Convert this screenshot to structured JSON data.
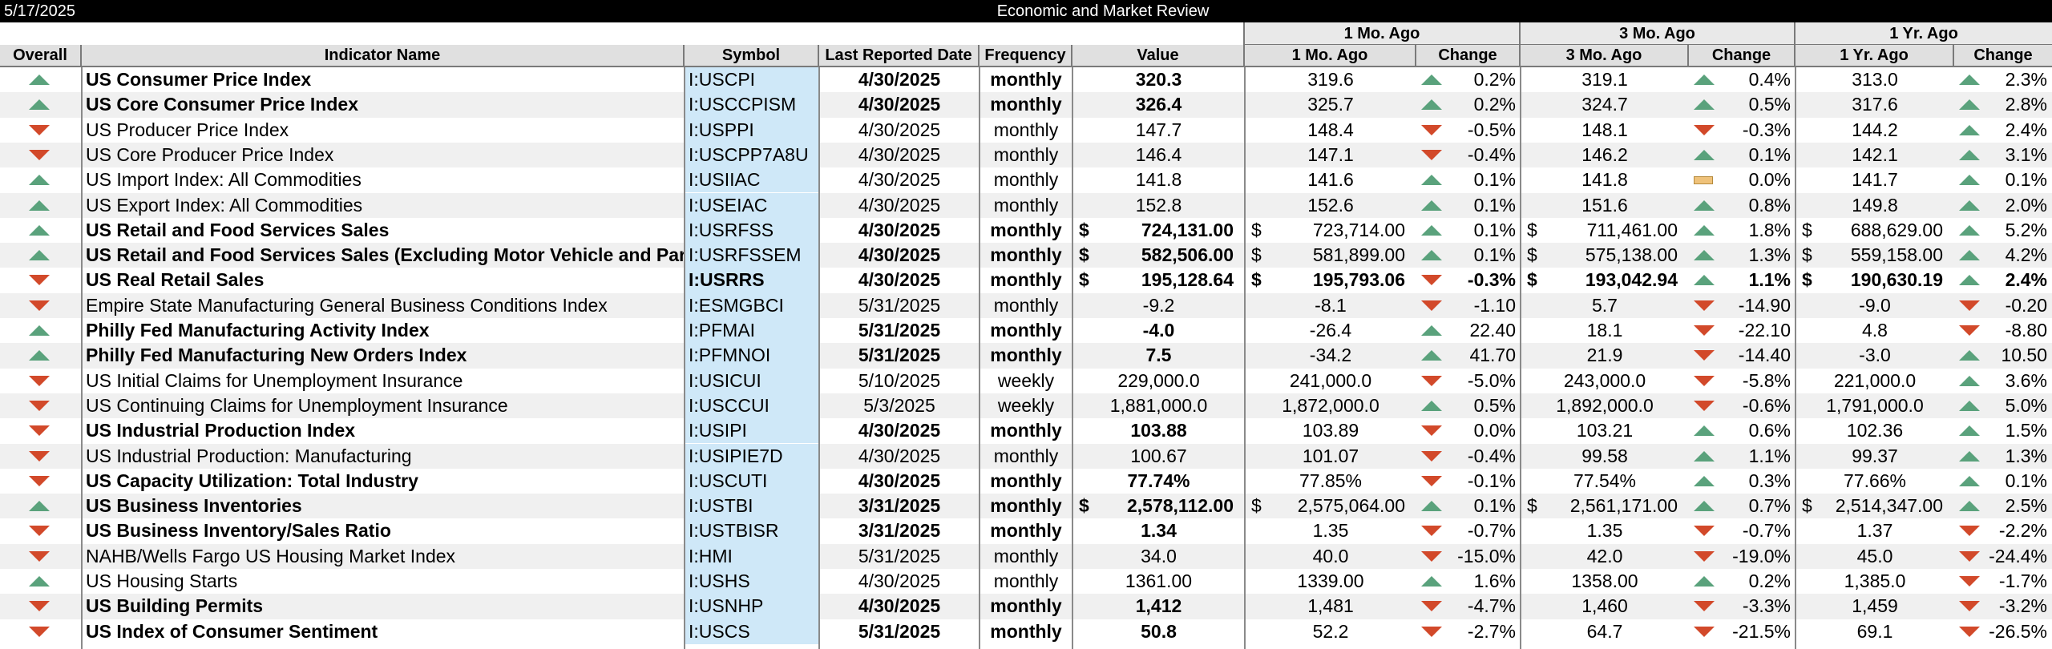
{
  "title_bar": {
    "date": "5/17/2025",
    "title": "Economic and Market Review"
  },
  "group_headers": {
    "one_month": "1 Mo. Ago",
    "three_month": "3 Mo. Ago",
    "one_year": "1 Yr. Ago"
  },
  "columns": {
    "overall": "Overall",
    "name": "Indicator Name",
    "symbol": "Symbol",
    "last_reported": "Last Reported Date",
    "frequency": "Frequency",
    "value": "Value",
    "m1": "1 Mo. Ago",
    "m1_change": "Change",
    "m3": "3 Mo. Ago",
    "m3_change": "Change",
    "y1": "1 Yr. Ago",
    "y1_change": "Change"
  },
  "colors": {
    "up": "#5aa27c",
    "down": "#d2492a",
    "flat": "#efc27a",
    "symbol_bg": "#cfe8f8",
    "alt_row": "#f0f0f0"
  },
  "rows": [
    {
      "overall": "up",
      "name": "US Consumer Price Index",
      "symbol": "I:USCPI",
      "date": "4/30/2025",
      "freq": "monthly",
      "value": "320.3",
      "m1": "319.6",
      "m1_dir": "up",
      "m1_chg": "0.2%",
      "m3": "319.1",
      "m3_dir": "up",
      "m3_chg": "0.4%",
      "y1": "313.0",
      "y1_dir": "up",
      "y1_chg": "2.3%",
      "bold": true,
      "dollar": false
    },
    {
      "overall": "up",
      "name": "US Core Consumer Price Index",
      "symbol": "I:USCCPISM",
      "date": "4/30/2025",
      "freq": "monthly",
      "value": "326.4",
      "m1": "325.7",
      "m1_dir": "up",
      "m1_chg": "0.2%",
      "m3": "324.7",
      "m3_dir": "up",
      "m3_chg": "0.5%",
      "y1": "317.6",
      "y1_dir": "up",
      "y1_chg": "2.8%",
      "bold": true,
      "dollar": false
    },
    {
      "overall": "down",
      "name": "US Producer Price Index",
      "symbol": "I:USPPI",
      "date": "4/30/2025",
      "freq": "monthly",
      "value": "147.7",
      "m1": "148.4",
      "m1_dir": "down",
      "m1_chg": "-0.5%",
      "m3": "148.1",
      "m3_dir": "down",
      "m3_chg": "-0.3%",
      "y1": "144.2",
      "y1_dir": "up",
      "y1_chg": "2.4%",
      "bold": false,
      "dollar": false
    },
    {
      "overall": "down",
      "name": "US Core Producer Price Index",
      "symbol": "I:USCPP7A8U",
      "date": "4/30/2025",
      "freq": "monthly",
      "value": "146.4",
      "m1": "147.1",
      "m1_dir": "down",
      "m1_chg": "-0.4%",
      "m3": "146.2",
      "m3_dir": "up",
      "m3_chg": "0.1%",
      "y1": "142.1",
      "y1_dir": "up",
      "y1_chg": "3.1%",
      "bold": false,
      "dollar": false
    },
    {
      "overall": "up",
      "name": "US Import Index: All Commodities",
      "symbol": "I:USIIAC",
      "date": "4/30/2025",
      "freq": "monthly",
      "value": "141.8",
      "m1": "141.6",
      "m1_dir": "up",
      "m1_chg": "0.1%",
      "m3": "141.8",
      "m3_dir": "flat",
      "m3_chg": "0.0%",
      "y1": "141.7",
      "y1_dir": "up",
      "y1_chg": "0.1%",
      "bold": false,
      "dollar": false
    },
    {
      "overall": "up",
      "name": "US Export Index: All Commodities",
      "symbol": "I:USEIAC",
      "date": "4/30/2025",
      "freq": "monthly",
      "value": "152.8",
      "m1": "152.6",
      "m1_dir": "up",
      "m1_chg": "0.1%",
      "m3": "151.6",
      "m3_dir": "up",
      "m3_chg": "0.8%",
      "y1": "149.8",
      "y1_dir": "up",
      "y1_chg": "2.0%",
      "bold": false,
      "dollar": false
    },
    {
      "overall": "up",
      "name": "US Retail and Food Services Sales",
      "symbol": "I:USRFSS",
      "date": "4/30/2025",
      "freq": "monthly",
      "value": "724,131.00",
      "m1": "723,714.00",
      "m1_dir": "up",
      "m1_chg": "0.1%",
      "m3": "711,461.00",
      "m3_dir": "up",
      "m3_chg": "1.8%",
      "y1": "688,629.00",
      "y1_dir": "up",
      "y1_chg": "5.2%",
      "bold": true,
      "dollar": true
    },
    {
      "overall": "up",
      "name": "US Retail and Food Services Sales (Excluding Motor Vehicle and Parts)",
      "symbol": "I:USRFSSEM",
      "date": "4/30/2025",
      "freq": "monthly",
      "value": "582,506.00",
      "m1": "581,899.00",
      "m1_dir": "up",
      "m1_chg": "0.1%",
      "m3": "575,138.00",
      "m3_dir": "up",
      "m3_chg": "1.3%",
      "y1": "559,158.00",
      "y1_dir": "up",
      "y1_chg": "4.2%",
      "bold": true,
      "dollar": true
    },
    {
      "overall": "down",
      "name": "US Real Retail Sales",
      "symbol": "I:USRRS",
      "date": "4/30/2025",
      "freq": "monthly",
      "value": "195,128.64",
      "m1": "195,793.06",
      "m1_dir": "down",
      "m1_chg": "-0.3%",
      "m3": "193,042.94",
      "m3_dir": "up",
      "m3_chg": "1.1%",
      "y1": "190,630.19",
      "y1_dir": "up",
      "y1_chg": "2.4%",
      "bold": true,
      "dollar": true,
      "all_bold": true
    },
    {
      "overall": "down",
      "name": "Empire State Manufacturing General Business Conditions Index",
      "symbol": "I:ESMGBCI",
      "date": "5/31/2025",
      "freq": "monthly",
      "value": "-9.2",
      "m1": "-8.1",
      "m1_dir": "down",
      "m1_chg": "-1.10",
      "m3": "5.7",
      "m3_dir": "down",
      "m3_chg": "-14.90",
      "y1": "-9.0",
      "y1_dir": "down",
      "y1_chg": "-0.20",
      "bold": false,
      "dollar": false
    },
    {
      "overall": "up",
      "name": "Philly Fed Manufacturing Activity Index",
      "symbol": "I:PFMAI",
      "date": "5/31/2025",
      "freq": "monthly",
      "value": "-4.0",
      "m1": "-26.4",
      "m1_dir": "up",
      "m1_chg": "22.40",
      "m3": "18.1",
      "m3_dir": "down",
      "m3_chg": "-22.10",
      "y1": "4.8",
      "y1_dir": "down",
      "y1_chg": "-8.80",
      "bold": true,
      "dollar": false
    },
    {
      "overall": "up",
      "name": "Philly Fed Manufacturing New Orders Index",
      "symbol": "I:PFMNOI",
      "date": "5/31/2025",
      "freq": "monthly",
      "value": "7.5",
      "m1": "-34.2",
      "m1_dir": "up",
      "m1_chg": "41.70",
      "m3": "21.9",
      "m3_dir": "down",
      "m3_chg": "-14.40",
      "y1": "-3.0",
      "y1_dir": "up",
      "y1_chg": "10.50",
      "bold": true,
      "dollar": false
    },
    {
      "overall": "down",
      "name": "US Initial Claims for Unemployment Insurance",
      "symbol": "I:USICUI",
      "date": "5/10/2025",
      "freq": "weekly",
      "value": "229,000.0",
      "m1": "241,000.0",
      "m1_dir": "down",
      "m1_chg": "-5.0%",
      "m3": "243,000.0",
      "m3_dir": "down",
      "m3_chg": "-5.8%",
      "y1": "221,000.0",
      "y1_dir": "up",
      "y1_chg": "3.6%",
      "bold": false,
      "dollar": false
    },
    {
      "overall": "down",
      "name": "US Continuing Claims for Unemployment Insurance",
      "symbol": "I:USCCUI",
      "date": "5/3/2025",
      "freq": "weekly",
      "value": "1,881,000.0",
      "m1": "1,872,000.0",
      "m1_dir": "up",
      "m1_chg": "0.5%",
      "m3": "1,892,000.0",
      "m3_dir": "down",
      "m3_chg": "-0.6%",
      "y1": "1,791,000.0",
      "y1_dir": "up",
      "y1_chg": "5.0%",
      "bold": false,
      "dollar": false
    },
    {
      "overall": "down",
      "name": "US Industrial Production Index",
      "symbol": "I:USIPI",
      "date": "4/30/2025",
      "freq": "monthly",
      "value": "103.88",
      "m1": "103.89",
      "m1_dir": "down",
      "m1_chg": "0.0%",
      "m3": "103.21",
      "m3_dir": "up",
      "m3_chg": "0.6%",
      "y1": "102.36",
      "y1_dir": "up",
      "y1_chg": "1.5%",
      "bold": true,
      "dollar": false
    },
    {
      "overall": "down",
      "name": "US Industrial Production: Manufacturing",
      "symbol": "I:USIPIE7D",
      "date": "4/30/2025",
      "freq": "monthly",
      "value": "100.67",
      "m1": "101.07",
      "m1_dir": "down",
      "m1_chg": "-0.4%",
      "m3": "99.58",
      "m3_dir": "up",
      "m3_chg": "1.1%",
      "y1": "99.37",
      "y1_dir": "up",
      "y1_chg": "1.3%",
      "bold": false,
      "dollar": false
    },
    {
      "overall": "down",
      "name": "US Capacity Utilization: Total Industry",
      "symbol": "I:USCUTI",
      "date": "4/30/2025",
      "freq": "monthly",
      "value": "77.74%",
      "m1": "77.85%",
      "m1_dir": "down",
      "m1_chg": "-0.1%",
      "m3": "77.54%",
      "m3_dir": "up",
      "m3_chg": "0.3%",
      "y1": "77.66%",
      "y1_dir": "up",
      "y1_chg": "0.1%",
      "bold": true,
      "dollar": false
    },
    {
      "overall": "up",
      "name": "US Business Inventories",
      "symbol": "I:USTBI",
      "date": "3/31/2025",
      "freq": "monthly",
      "value": "2,578,112.00",
      "m1": "2,575,064.00",
      "m1_dir": "up",
      "m1_chg": "0.1%",
      "m3": "2,561,171.00",
      "m3_dir": "up",
      "m3_chg": "0.7%",
      "y1": "2,514,347.00",
      "y1_dir": "up",
      "y1_chg": "2.5%",
      "bold": true,
      "dollar": true
    },
    {
      "overall": "down",
      "name": "US Business Inventory/Sales Ratio",
      "symbol": "I:USTBISR",
      "date": "3/31/2025",
      "freq": "monthly",
      "value": "1.34",
      "m1": "1.35",
      "m1_dir": "down",
      "m1_chg": "-0.7%",
      "m3": "1.35",
      "m3_dir": "down",
      "m3_chg": "-0.7%",
      "y1": "1.37",
      "y1_dir": "down",
      "y1_chg": "-2.2%",
      "bold": true,
      "dollar": false
    },
    {
      "overall": "down",
      "name": "NAHB/Wells Fargo US Housing Market Index",
      "symbol": "I:HMI",
      "date": "5/31/2025",
      "freq": "monthly",
      "value": "34.0",
      "m1": "40.0",
      "m1_dir": "down",
      "m1_chg": "-15.0%",
      "m3": "42.0",
      "m3_dir": "down",
      "m3_chg": "-19.0%",
      "y1": "45.0",
      "y1_dir": "down",
      "y1_chg": "-24.4%",
      "bold": false,
      "dollar": false
    },
    {
      "overall": "up",
      "name": "US Housing Starts",
      "symbol": "I:USHS",
      "date": "4/30/2025",
      "freq": "monthly",
      "value": "1361.00",
      "m1": "1339.00",
      "m1_dir": "up",
      "m1_chg": "1.6%",
      "m3": "1358.00",
      "m3_dir": "up",
      "m3_chg": "0.2%",
      "y1": "1,385.0",
      "y1_dir": "down",
      "y1_chg": "-1.7%",
      "bold": false,
      "dollar": false
    },
    {
      "overall": "down",
      "name": "US Building Permits",
      "symbol": "I:USNHP",
      "date": "4/30/2025",
      "freq": "monthly",
      "value": "1,412",
      "m1": "1,481",
      "m1_dir": "down",
      "m1_chg": "-4.7%",
      "m3": "1,460",
      "m3_dir": "down",
      "m3_chg": "-3.3%",
      "y1": "1,459",
      "y1_dir": "down",
      "y1_chg": "-3.2%",
      "bold": true,
      "dollar": false
    },
    {
      "overall": "down",
      "name": "US Index of Consumer Sentiment",
      "symbol": "I:USCS",
      "date": "5/31/2025",
      "freq": "monthly",
      "value": "50.8",
      "m1": "52.2",
      "m1_dir": "down",
      "m1_chg": "-2.7%",
      "m3": "64.7",
      "m3_dir": "down",
      "m3_chg": "-21.5%",
      "y1": "69.1",
      "y1_dir": "down",
      "y1_chg": "-26.5%",
      "bold": true,
      "dollar": false
    }
  ]
}
